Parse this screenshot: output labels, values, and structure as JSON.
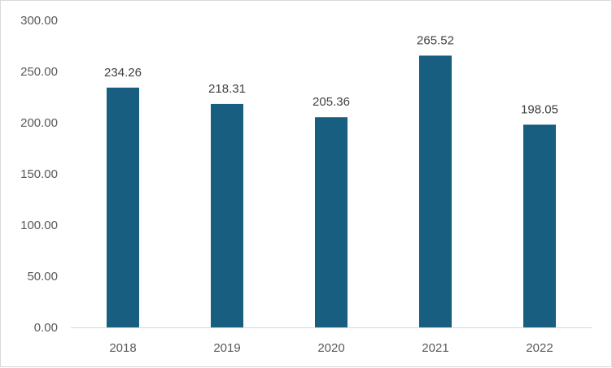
{
  "chart_data": {
    "type": "bar",
    "title": "",
    "xlabel": "",
    "ylabel": "",
    "categories": [
      "2018",
      "2019",
      "2020",
      "2021",
      "2022"
    ],
    "values": [
      234.26,
      218.31,
      205.36,
      265.52,
      198.05
    ],
    "data_labels": [
      "234.26",
      "218.31",
      "205.36",
      "265.52",
      "198.05"
    ],
    "ylim": [
      0,
      300
    ],
    "yticks": [
      0,
      50,
      100,
      150,
      200,
      250,
      300
    ],
    "ytick_labels": [
      "0.00",
      "50.00",
      "100.00",
      "150.00",
      "200.00",
      "250.00",
      "300.00"
    ],
    "grid": false,
    "legend": "none",
    "bar_color": "#175e80",
    "axis_color": "#d9d9d9"
  }
}
